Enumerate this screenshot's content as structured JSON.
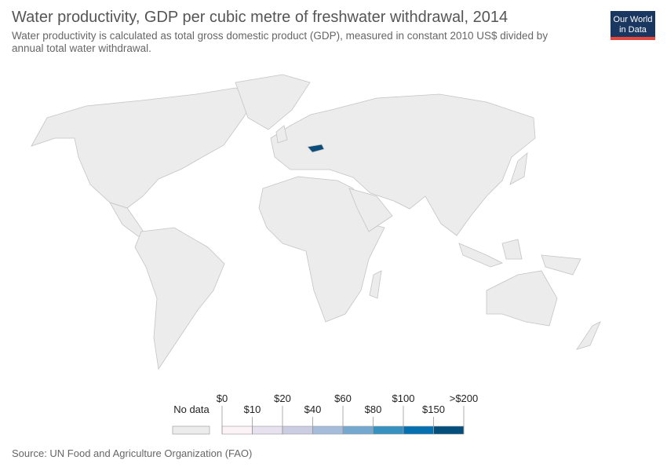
{
  "header": {
    "title": "Water productivity, GDP per cubic metre of freshwater withdrawal, 2014",
    "subtitle_lines": [
      "Water productivity is calculated as total gross domestic product (GDP), measured in constant 2010 US$ divided by",
      "annual total water withdrawal."
    ],
    "logo_lines": [
      "Our World",
      "in Data"
    ]
  },
  "legend": {
    "no_data_label": "No data",
    "ticks": [
      "$0",
      "$10",
      "$20",
      "$40",
      "$60",
      "$80",
      "$100",
      "$150",
      ">$200"
    ],
    "colors": [
      "#fbf3f6",
      "#e6e0ef",
      "#cbcde3",
      "#a6bcdb",
      "#74a8cf",
      "#3690c0",
      "#0570b0",
      "#034e7b"
    ],
    "no_data_color": "#ececec"
  },
  "footer": {
    "source": "Source: UN Food and Agriculture Organization (FAO)"
  }
}
